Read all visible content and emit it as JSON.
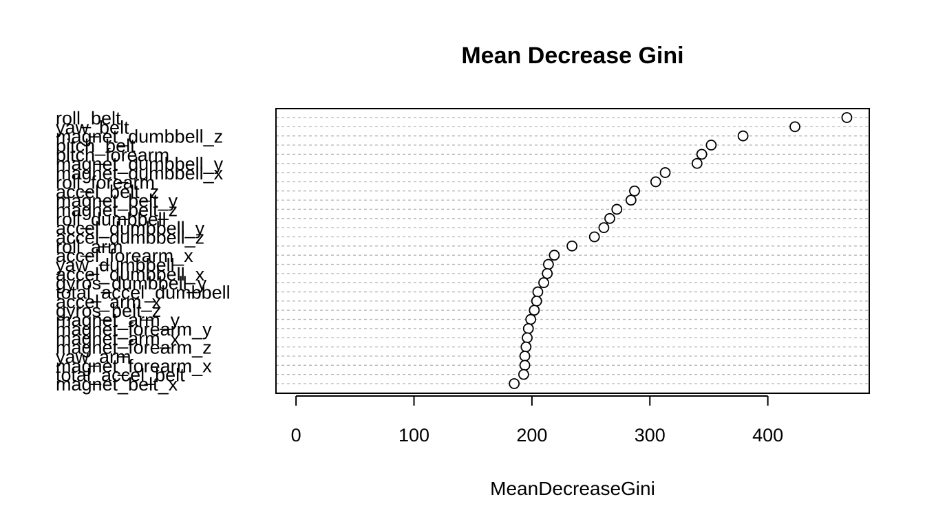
{
  "chart_data": {
    "type": "scatter",
    "title": "Mean Decrease Gini",
    "xlabel": "MeanDecreaseGini",
    "ylabel": "",
    "xlim": [
      -17,
      486
    ],
    "xticks": [
      0,
      100,
      200,
      300,
      400
    ],
    "grid": true,
    "legend": "none",
    "categories": [
      "roll_belt",
      "yaw_belt",
      "magnet_dumbbell_z",
      "pitch_belt",
      "pitch_forearm",
      "magnet_dumbbell_y",
      "magnet_dumbbell_x",
      "roll_forearm",
      "accel_belt_z",
      "magnet_belt_y",
      "magnet_belt_z",
      "roll_dumbbell",
      "accel_dumbbell_y",
      "accel_dumbbell_z",
      "roll_arm",
      "accel_forearm_x",
      "yaw_dumbbell",
      "accel_dumbbell_x",
      "gyros_dumbbell_y",
      "total_accel_dumbbell",
      "accel_arm_x",
      "gyros_belt_z",
      "magnet_arm_y",
      "magnet_forearm_y",
      "magnet_arm_x",
      "magnet_forearm_z",
      "yaw_arm",
      "magnet_forearm_x",
      "total_accel_belt",
      "magnet_belt_x"
    ],
    "values": [
      467,
      423,
      379,
      352,
      344,
      340,
      313,
      305,
      287,
      284,
      272,
      266,
      261,
      253,
      234,
      219,
      214,
      213,
      210,
      205,
      204,
      202,
      199,
      197,
      196,
      195,
      194,
      194,
      193,
      185
    ]
  }
}
